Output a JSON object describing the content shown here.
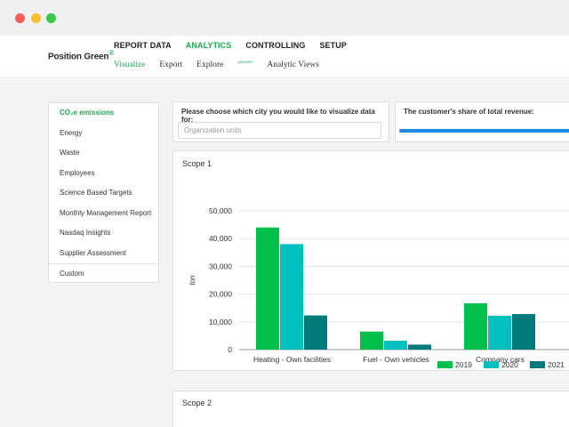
{
  "window": {
    "controls": [
      "close",
      "minimize",
      "maximize"
    ]
  },
  "header": {
    "logo_text": "Position Green",
    "logo_mark": "®",
    "topnav": [
      {
        "label": "REPORT DATA",
        "active": false
      },
      {
        "label": "ANALYTICS",
        "active": true
      },
      {
        "label": "CONTROLLING",
        "active": false
      },
      {
        "label": "SETUP",
        "active": false
      }
    ],
    "subnav": [
      {
        "label": "Visualize",
        "active": true
      },
      {
        "label": "Export",
        "active": false
      },
      {
        "label": "Explore",
        "active": false,
        "badge": "preview"
      },
      {
        "label": "Analytic Views",
        "active": false
      }
    ]
  },
  "sidemenu": {
    "items": [
      {
        "label": "CO₂e emissions",
        "active": true
      },
      {
        "label": "Energy",
        "active": false
      },
      {
        "label": "Waste",
        "active": false
      },
      {
        "label": "Employees",
        "active": false
      },
      {
        "label": "Science Based Targets",
        "active": false
      },
      {
        "label": "Monthly Management Report",
        "active": false
      },
      {
        "label": "Nasdaq Insights",
        "active": false
      },
      {
        "label": "Supplier Assessment",
        "active": false
      },
      {
        "label": "Custom",
        "active": false
      }
    ]
  },
  "city_card": {
    "title": "Please choose which city you would like to visualize data for:",
    "input_placeholder": "Organization units"
  },
  "revenue_card": {
    "title": "The customer's share of total revenue:",
    "progress_percent": 100
  },
  "scope1": {
    "title": "Scope 1"
  },
  "scope2": {
    "title": "Scope 2"
  },
  "chart_data": {
    "type": "bar",
    "title": "Scope 1",
    "ylabel": "ton",
    "xlabel": "",
    "ylim": [
      0,
      50000
    ],
    "yticks": [
      0,
      10000,
      20000,
      30000,
      40000,
      50000
    ],
    "ytick_labels": [
      "0",
      "10,000",
      "20,000",
      "30,000",
      "40,000",
      "50,000"
    ],
    "categories": [
      "Heating - Own facilities",
      "Fuel - Own vehicles",
      "Company cars"
    ],
    "series": [
      {
        "name": "2019",
        "color": "#00c04b",
        "values": [
          44000,
          6500,
          16700
        ]
      },
      {
        "name": "2020",
        "color": "#00bfbf",
        "values": [
          38000,
          3200,
          12200
        ]
      },
      {
        "name": "2021",
        "color": "#007a7a",
        "values": [
          12300,
          1800,
          12800
        ]
      }
    ],
    "grid": true,
    "legend": "bottom-right"
  }
}
